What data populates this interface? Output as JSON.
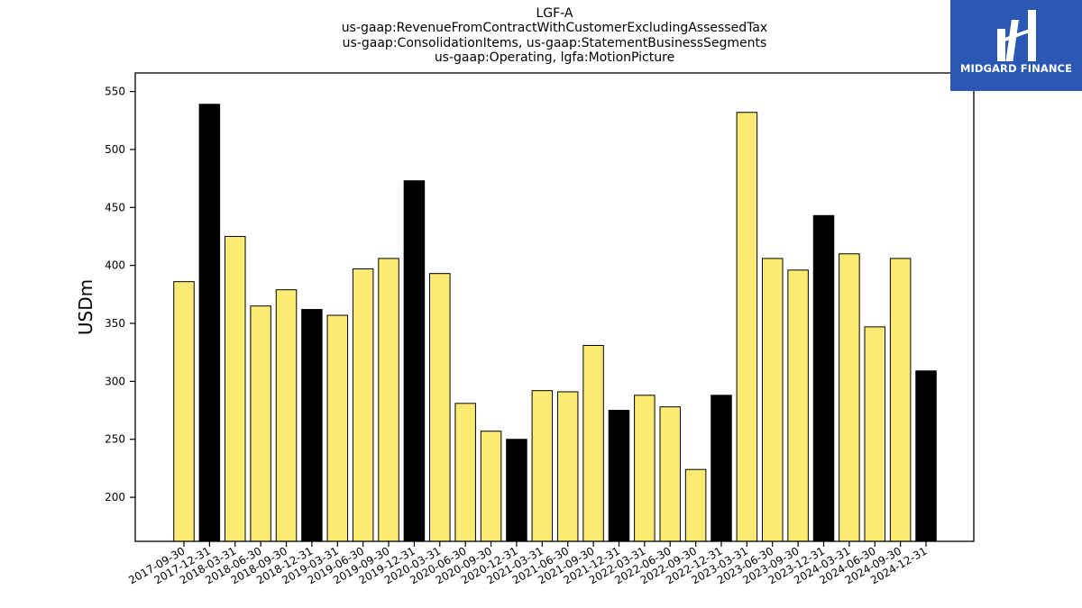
{
  "chart_data": {
    "type": "bar",
    "title_lines": [
      "LGF-A",
      "us-gaap:RevenueFromContractWithCustomerExcludingAssessedTax",
      "us-gaap:ConsolidationItems, us-gaap:StatementBusinessSegments",
      "us-gaap:Operating, lgfa:MotionPicture"
    ],
    "xlabel": "",
    "ylabel": "USDm",
    "ylim": [
      162,
      566
    ],
    "yticks": [
      200,
      250,
      300,
      350,
      400,
      450,
      500,
      550
    ],
    "grid": false,
    "legend": "none",
    "colors": {
      "quarter": "#fceb72",
      "year_end": "#000000",
      "edge": "#000000"
    },
    "categories": [
      "2017-09-30",
      "2017-12-31",
      "2018-03-31",
      "2018-06-30",
      "2018-09-30",
      "2018-12-31",
      "2019-03-31",
      "2019-06-30",
      "2019-09-30",
      "2019-12-31",
      "2020-03-31",
      "2020-06-30",
      "2020-09-30",
      "2020-12-31",
      "2021-03-31",
      "2021-06-30",
      "2021-09-30",
      "2021-12-31",
      "2022-03-31",
      "2022-06-30",
      "2022-09-30",
      "2022-12-31",
      "2023-03-31",
      "2023-06-30",
      "2023-09-30",
      "2023-12-31",
      "2024-03-31",
      "2024-06-30",
      "2024-09-30",
      "2024-12-31"
    ],
    "values": [
      386,
      539,
      425,
      365,
      379,
      362,
      357,
      397,
      406,
      473,
      393,
      281,
      257,
      250,
      292,
      291,
      331,
      275,
      288,
      278,
      224,
      288,
      532,
      406,
      396,
      443,
      410,
      347,
      406,
      309
    ]
  },
  "logo": {
    "text": "MIDGARD FINANCE"
  }
}
